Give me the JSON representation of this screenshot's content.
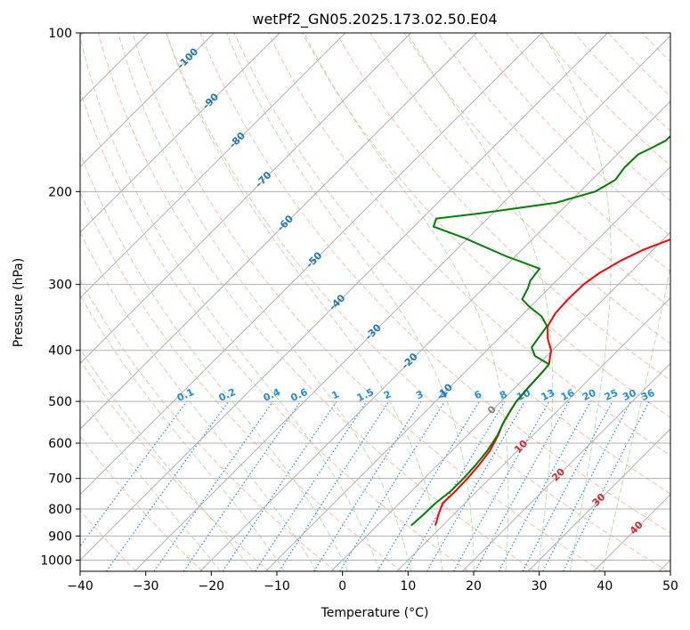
{
  "chart_data": {
    "type": "line",
    "chart_kind": "skew-t log-p diagram",
    "title": "wetPf2_GN05.2025.173.02.50.E04",
    "xlabel": "Temperature (°C)",
    "ylabel": "Pressure (hPa)",
    "xlim": [
      -40,
      50
    ],
    "ylim": [
      1050,
      100
    ],
    "yscale": "log",
    "grid": true,
    "x_ticks": [
      -40,
      -30,
      -20,
      -10,
      0,
      10,
      20,
      30,
      40,
      50
    ],
    "x_tick_labels": [
      "−40",
      "−30",
      "−20",
      "−10",
      "0",
      "10",
      "20",
      "30",
      "40",
      "50"
    ],
    "y_ticks": [
      100,
      200,
      300,
      400,
      500,
      600,
      700,
      800,
      900,
      1000
    ],
    "y_tick_labels": [
      "100",
      "200",
      "300",
      "400",
      "500",
      "600",
      "700",
      "800",
      "900",
      "1000"
    ],
    "series": [
      {
        "color": "#ff0000",
        "points": [
          [
            8.9,
            860
          ],
          [
            7.7,
            820
          ],
          [
            6.6,
            780
          ],
          [
            6.7,
            740
          ],
          [
            6.6,
            700
          ],
          [
            6.3,
            660
          ],
          [
            5.8,
            620
          ],
          [
            4.7,
            580
          ],
          [
            3.6,
            550
          ],
          [
            2.8,
            520
          ],
          [
            2.3,
            500
          ],
          [
            2.0,
            470
          ],
          [
            1.8,
            440
          ],
          [
            1.6,
            425
          ],
          [
            -0.2,
            400
          ],
          [
            -2.5,
            380
          ],
          [
            -4.4,
            360
          ],
          [
            -5.2,
            340
          ],
          [
            -5.4,
            320
          ],
          [
            -5.3,
            300
          ],
          [
            -4.6,
            285
          ],
          [
            -3.2,
            270
          ],
          [
            -1.5,
            258
          ],
          [
            1.4,
            245
          ],
          [
            4.8,
            232
          ],
          [
            7.7,
            220
          ],
          [
            9.6,
            210
          ],
          [
            11.0,
            200
          ],
          [
            12.4,
            190
          ],
          [
            14.1,
            180
          ],
          [
            16.0,
            170
          ],
          [
            17.8,
            160
          ],
          [
            20.0,
            150
          ],
          [
            22.3,
            140
          ],
          [
            24.5,
            130
          ],
          [
            26.8,
            120
          ],
          [
            28.5,
            110
          ],
          [
            30.2,
            100
          ]
        ]
      },
      {
        "color": "#008000",
        "points": [
          [
            5.2,
            860
          ],
          [
            5.4,
            820
          ],
          [
            5.5,
            780
          ],
          [
            6.0,
            740
          ],
          [
            6.0,
            700
          ],
          [
            5.8,
            660
          ],
          [
            5.4,
            620
          ],
          [
            4.6,
            580
          ],
          [
            3.6,
            550
          ],
          [
            2.8,
            520
          ],
          [
            2.3,
            500
          ],
          [
            2.0,
            470
          ],
          [
            1.8,
            440
          ],
          [
            1.6,
            425
          ],
          [
            -1.8,
            410
          ],
          [
            -3.6,
            395
          ],
          [
            -4.0,
            380
          ],
          [
            -4.5,
            360
          ],
          [
            -6.8,
            345
          ],
          [
            -10.3,
            330
          ],
          [
            -12.4,
            320
          ],
          [
            -13.2,
            305
          ],
          [
            -14.0,
            295
          ],
          [
            -14.4,
            280
          ],
          [
            -21.5,
            265
          ],
          [
            -30.5,
            245
          ],
          [
            -37.0,
            233
          ],
          [
            -37.8,
            225
          ],
          [
            -32.0,
            220
          ],
          [
            -22.0,
            210
          ],
          [
            -17.7,
            200
          ],
          [
            -16.4,
            190
          ],
          [
            -16.9,
            180
          ],
          [
            -16.8,
            170
          ],
          [
            -15.7,
            165
          ],
          [
            -14.7,
            160
          ],
          [
            -14.6,
            150
          ],
          [
            -15.2,
            145
          ],
          [
            -14.8,
            140
          ],
          [
            -12.9,
            133
          ],
          [
            -9.8,
            125
          ],
          [
            -7.0,
            115
          ],
          [
            -5.3,
            107
          ],
          [
            -4.2,
            100
          ]
        ]
      }
    ],
    "dry_adiabat_labels_C": [
      -100,
      -90,
      -80,
      -70,
      -60,
      -50,
      -40,
      -30,
      -20,
      -10
    ],
    "moist_adiabat_labels_C": [
      0,
      10,
      20,
      30,
      40
    ],
    "mixing_ratio_labels_gkg": [
      "0.1",
      "0.2",
      "0.4",
      "0.6",
      "1",
      "1.5",
      "2",
      "3",
      "4",
      "6",
      "8",
      "10",
      "13",
      "16",
      "20",
      "25",
      "30",
      "36"
    ],
    "colors": {
      "temperature": "#ff0000",
      "dewpoint": "#008000",
      "isotherm_grid": "#b0b0b0",
      "dry_adiabat": "#f4a582",
      "moist_adiabat": "#a6d79a",
      "mixing_ratio": "#1f8ce6",
      "dry_label": "#1f77b4",
      "moist_label": "#d62728",
      "zero_label": "#808080"
    }
  }
}
